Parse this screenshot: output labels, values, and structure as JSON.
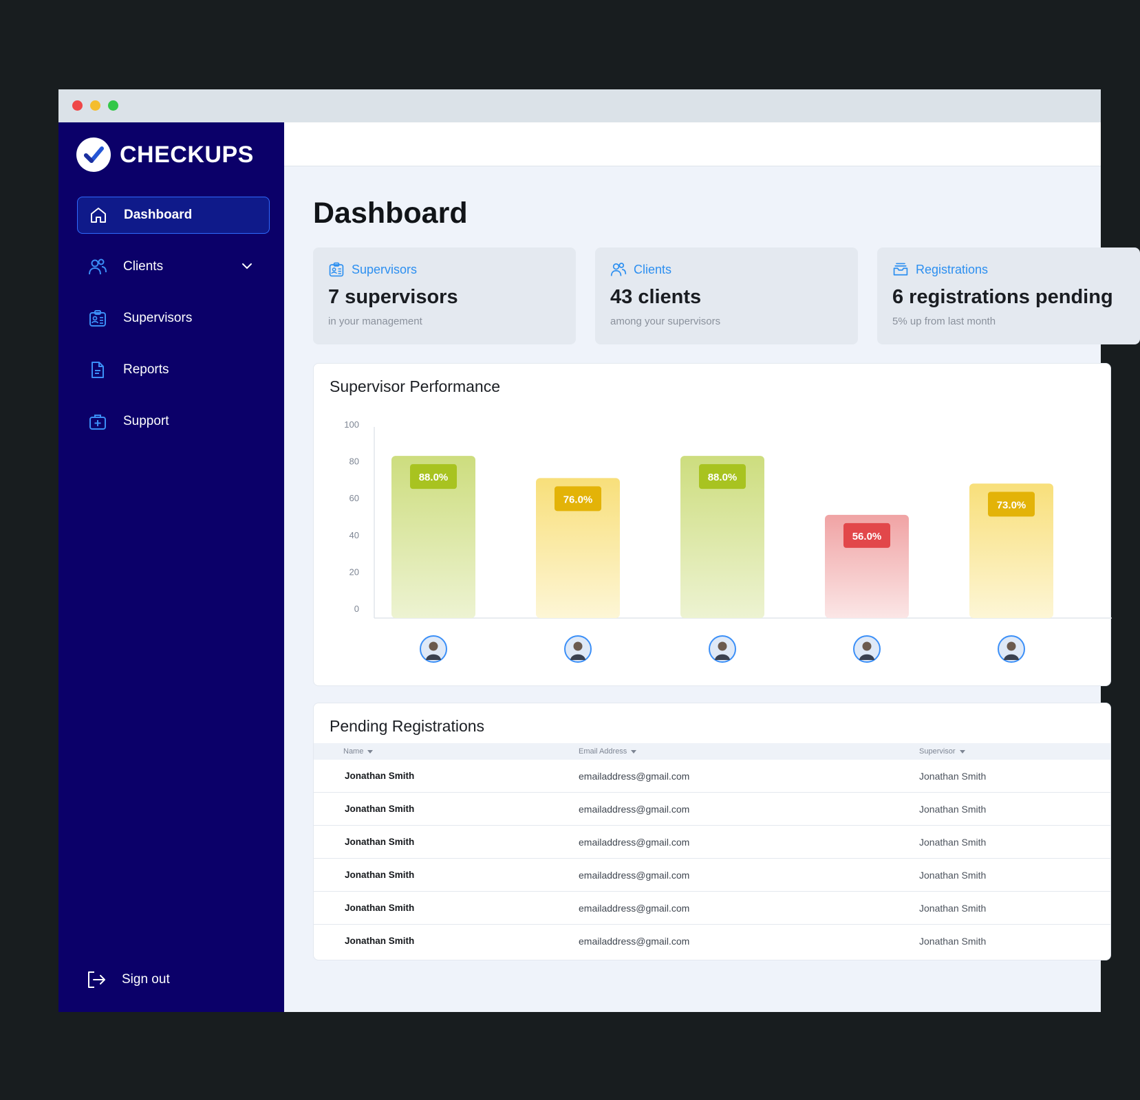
{
  "app": {
    "name": "CHECKUPS"
  },
  "sidebar": {
    "items": [
      {
        "label": "Dashboard",
        "icon": "home-icon",
        "active": true
      },
      {
        "label": "Clients",
        "icon": "users-icon",
        "active": false
      },
      {
        "label": "Supervisors",
        "icon": "id-badge-icon",
        "active": false
      },
      {
        "label": "Reports",
        "icon": "document-icon",
        "active": false
      },
      {
        "label": "Support",
        "icon": "medical-bag-icon",
        "active": false
      }
    ],
    "signout_label": "Sign out"
  },
  "main": {
    "title": "Dashboard",
    "stats": [
      {
        "label": "Supervisors",
        "value": "7 supervisors",
        "sub": "in your management",
        "icon": "id-badge-icon"
      },
      {
        "label": "Clients",
        "value": "43 clients",
        "sub": "among your supervisors",
        "icon": "users-icon"
      },
      {
        "label": "Registrations",
        "value": "6 registrations pending",
        "sub": "5% up from last month",
        "icon": "inbox-icon"
      }
    ],
    "performance": {
      "title": "Supervisor Performance"
    },
    "registrations": {
      "title": "Pending Registrations",
      "columns": [
        "Name",
        "Email Address",
        "Supervisor"
      ],
      "rows": [
        {
          "name": "Jonathan Smith",
          "email": "emailaddress@gmail.com",
          "supervisor": "Jonathan Smith"
        },
        {
          "name": "Jonathan Smith",
          "email": "emailaddress@gmail.com",
          "supervisor": "Jonathan Smith"
        },
        {
          "name": "Jonathan Smith",
          "email": "emailaddress@gmail.com",
          "supervisor": "Jonathan Smith"
        },
        {
          "name": "Jonathan Smith",
          "email": "emailaddress@gmail.com",
          "supervisor": "Jonathan Smith"
        },
        {
          "name": "Jonathan Smith",
          "email": "emailaddress@gmail.com",
          "supervisor": "Jonathan Smith"
        },
        {
          "name": "Jonathan Smith",
          "email": "emailaddress@gmail.com",
          "supervisor": "Jonathan Smith"
        }
      ]
    }
  },
  "colors": {
    "sidebar": "#0b0069",
    "accent": "#2c8ff0",
    "good": "#a8c320",
    "medium": "#e3b308",
    "poor": "#e2474a"
  },
  "chart_data": {
    "type": "bar",
    "categories": [
      "",
      "",
      "",
      "",
      ""
    ],
    "values": [
      88.0,
      76.0,
      88.0,
      56.0,
      73.0
    ],
    "data_labels": [
      "88.0%",
      "76.0%",
      "88.0%",
      "56.0%",
      "73.0%"
    ],
    "status": [
      "good",
      "medium",
      "good",
      "poor",
      "medium"
    ],
    "yticks": [
      0,
      20,
      40,
      60,
      80,
      100
    ],
    "ylim": [
      0,
      100
    ],
    "grid": false,
    "title": "Supervisor Performance",
    "xlabel": "",
    "ylabel": ""
  }
}
